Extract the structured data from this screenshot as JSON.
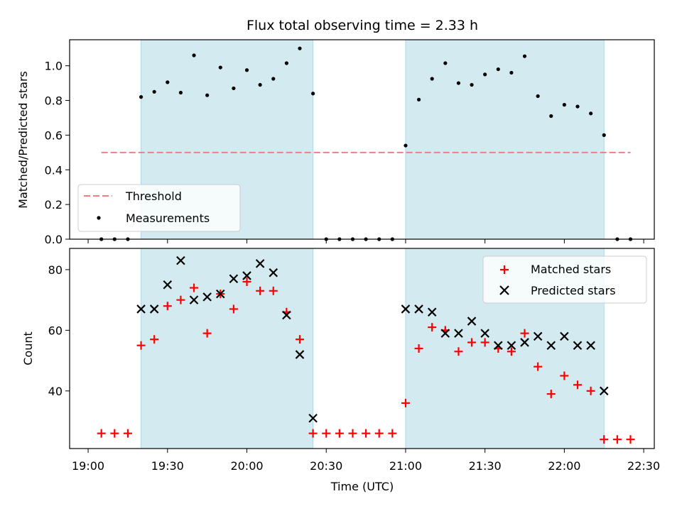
{
  "chart_data": [
    {
      "type": "scatter",
      "title": "Flux total observing time = 2.33 h",
      "xlabel": "",
      "ylabel": "Matched/Predicted stars",
      "ylim": [
        0,
        1.15
      ],
      "yticks": [
        "0.0",
        "0.2",
        "0.4",
        "0.6",
        "0.8",
        "1.0"
      ],
      "grid": false,
      "legend": {
        "placement": "lower-left",
        "entries": [
          "Threshold",
          "Measurements"
        ]
      },
      "shaded_intervals": [
        [
          "19:20",
          "20:25"
        ],
        [
          "21:00",
          "22:15"
        ]
      ],
      "threshold": {
        "name": "Threshold",
        "value": 0.5,
        "x_range": [
          "19:05",
          "22:25"
        ],
        "color": "#f08080",
        "style": "dashed"
      },
      "series": [
        {
          "name": "Measurements",
          "color": "#000000",
          "marker": "dot",
          "points": [
            [
              "19:05",
              0.0
            ],
            [
              "19:10",
              0.0
            ],
            [
              "19:15",
              0.0
            ],
            [
              "19:20",
              0.82
            ],
            [
              "19:25",
              0.85
            ],
            [
              "19:30",
              0.905
            ],
            [
              "19:35",
              0.845
            ],
            [
              "19:40",
              1.06
            ],
            [
              "19:45",
              0.83
            ],
            [
              "19:50",
              0.99
            ],
            [
              "19:55",
              0.87
            ],
            [
              "20:00",
              0.975
            ],
            [
              "20:05",
              0.89
            ],
            [
              "20:10",
              0.925
            ],
            [
              "20:15",
              1.015
            ],
            [
              "20:20",
              1.1
            ],
            [
              "20:25",
              0.84
            ],
            [
              "20:30",
              0.0
            ],
            [
              "20:35",
              0.0
            ],
            [
              "20:40",
              0.0
            ],
            [
              "20:45",
              0.0
            ],
            [
              "20:50",
              0.0
            ],
            [
              "20:55",
              0.0
            ],
            [
              "21:00",
              0.54
            ],
            [
              "21:05",
              0.805
            ],
            [
              "21:10",
              0.925
            ],
            [
              "21:15",
              1.015
            ],
            [
              "21:20",
              0.9
            ],
            [
              "21:25",
              0.89
            ],
            [
              "21:30",
              0.95
            ],
            [
              "21:35",
              0.98
            ],
            [
              "21:40",
              0.96
            ],
            [
              "21:45",
              1.055
            ],
            [
              "21:50",
              0.825
            ],
            [
              "21:55",
              0.71
            ],
            [
              "22:00",
              0.775
            ],
            [
              "22:05",
              0.765
            ],
            [
              "22:10",
              0.725
            ],
            [
              "22:15",
              0.6
            ],
            [
              "22:20",
              0.0
            ],
            [
              "22:25",
              0.0
            ]
          ]
        }
      ]
    },
    {
      "type": "scatter",
      "title": "",
      "xlabel": "Time (UTC)",
      "ylabel": "Count",
      "xlim": [
        "18:53",
        "22:34"
      ],
      "ylim": [
        21,
        87
      ],
      "yticks": [
        "40",
        "60",
        "80"
      ],
      "xticks": [
        "19:00",
        "19:30",
        "20:00",
        "20:30",
        "21:00",
        "21:30",
        "22:00",
        "22:30"
      ],
      "grid": false,
      "legend": {
        "placement": "top-right",
        "entries": [
          "Matched stars",
          "Predicted stars"
        ]
      },
      "shaded_intervals": [
        [
          "19:20",
          "20:25"
        ],
        [
          "21:00",
          "22:15"
        ]
      ],
      "series": [
        {
          "name": "Matched stars",
          "color": "#ff0000",
          "marker": "plus",
          "points": [
            [
              "19:05",
              26
            ],
            [
              "19:10",
              26
            ],
            [
              "19:15",
              26
            ],
            [
              "19:20",
              55
            ],
            [
              "19:25",
              57
            ],
            [
              "19:30",
              68
            ],
            [
              "19:35",
              70
            ],
            [
              "19:40",
              74
            ],
            [
              "19:45",
              59
            ],
            [
              "19:50",
              72
            ],
            [
              "19:55",
              67
            ],
            [
              "20:00",
              76
            ],
            [
              "20:05",
              73
            ],
            [
              "20:10",
              73
            ],
            [
              "20:15",
              66
            ],
            [
              "20:20",
              57
            ],
            [
              "20:25",
              26
            ],
            [
              "20:30",
              26
            ],
            [
              "20:35",
              26
            ],
            [
              "20:40",
              26
            ],
            [
              "20:45",
              26
            ],
            [
              "20:50",
              26
            ],
            [
              "20:55",
              26
            ],
            [
              "21:00",
              36
            ],
            [
              "21:05",
              54
            ],
            [
              "21:10",
              61
            ],
            [
              "21:15",
              60
            ],
            [
              "21:20",
              53
            ],
            [
              "21:25",
              56
            ],
            [
              "21:30",
              56
            ],
            [
              "21:35",
              54
            ],
            [
              "21:40",
              53
            ],
            [
              "21:45",
              59
            ],
            [
              "21:50",
              48
            ],
            [
              "21:55",
              39
            ],
            [
              "22:00",
              45
            ],
            [
              "22:05",
              42
            ],
            [
              "22:10",
              40
            ],
            [
              "22:15",
              24
            ],
            [
              "22:20",
              24
            ],
            [
              "22:25",
              24
            ]
          ]
        },
        {
          "name": "Predicted stars",
          "color": "#000000",
          "marker": "x",
          "points": [
            [
              "19:20",
              67
            ],
            [
              "19:25",
              67
            ],
            [
              "19:30",
              75
            ],
            [
              "19:35",
              83
            ],
            [
              "19:40",
              70
            ],
            [
              "19:45",
              71
            ],
            [
              "19:50",
              72
            ],
            [
              "19:55",
              77
            ],
            [
              "20:00",
              78
            ],
            [
              "20:05",
              82
            ],
            [
              "20:10",
              79
            ],
            [
              "20:15",
              65
            ],
            [
              "20:20",
              52
            ],
            [
              "20:25",
              31
            ],
            [
              "21:00",
              67
            ],
            [
              "21:05",
              67
            ],
            [
              "21:10",
              66
            ],
            [
              "21:15",
              59
            ],
            [
              "21:20",
              59
            ],
            [
              "21:25",
              63
            ],
            [
              "21:30",
              59
            ],
            [
              "21:35",
              55
            ],
            [
              "21:40",
              55
            ],
            [
              "21:45",
              56
            ],
            [
              "21:50",
              58
            ],
            [
              "21:55",
              55
            ],
            [
              "22:00",
              58
            ],
            [
              "22:05",
              55
            ],
            [
              "22:10",
              55
            ],
            [
              "22:15",
              40
            ]
          ]
        }
      ]
    }
  ],
  "colors": {
    "shade": "#d3eaf0",
    "shade_edge": "#add8e6",
    "threshold": "#f08080",
    "matched": "#ff0000",
    "predicted": "#000000"
  }
}
